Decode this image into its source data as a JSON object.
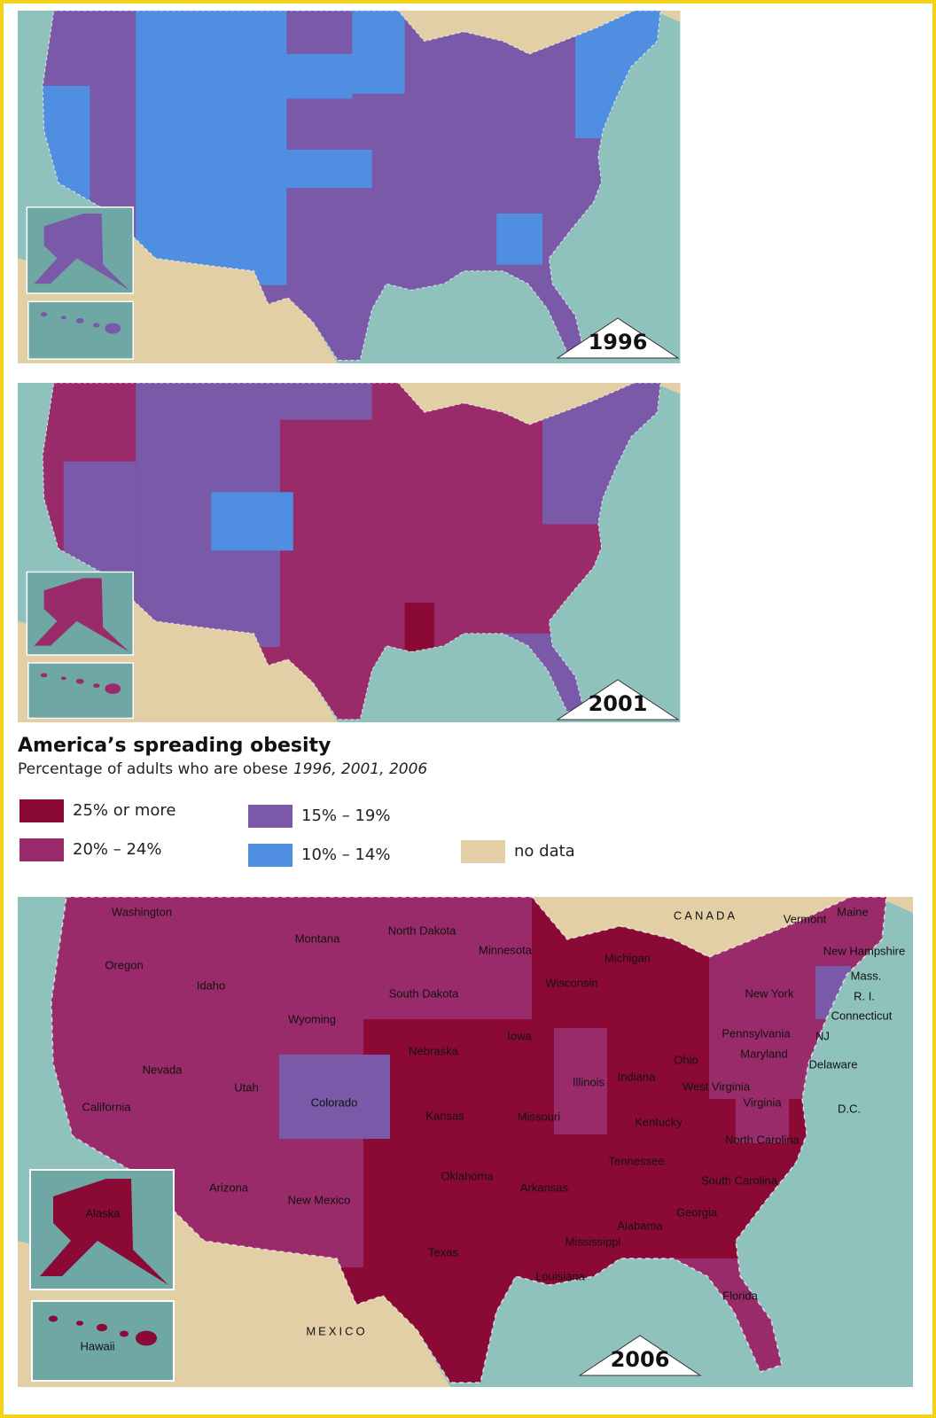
{
  "title": "America’s spreading obesity",
  "subtitle": {
    "text": "Percentage of adults who are obese",
    "years": "1996, 2001, 2006"
  },
  "legend": [
    {
      "label": "25% or more",
      "color": "#8a0a35"
    },
    {
      "label": "20% – 24%",
      "color": "#9a2b6a"
    },
    {
      "label": "15% – 19%",
      "color": "#7a5aa8"
    },
    {
      "label": "10% – 14%",
      "color": "#4f8ee0"
    },
    {
      "label": "no data",
      "color": "#e3cfa6"
    }
  ],
  "maps": [
    {
      "year": "1996"
    },
    {
      "year": "2001"
    },
    {
      "year": "2006",
      "country_labels": [
        "CANADA",
        "MEXICO"
      ],
      "state_labels": [
        "Washington",
        "Oregon",
        "Idaho",
        "Montana",
        "North Dakota",
        "Minnesota",
        "South Dakota",
        "Wyoming",
        "Nebraska",
        "Iowa",
        "Wisconsin",
        "Michigan",
        "Illinois",
        "Indiana",
        "Ohio",
        "West Virginia",
        "Nevada",
        "Utah",
        "Colorado",
        "California",
        "Kansas",
        "Missouri",
        "Kentucky",
        "Virginia",
        "Arizona",
        "New Mexico",
        "Oklahoma",
        "Arkansas",
        "Tennessee",
        "North Carolina",
        "South Carolina",
        "Georgia",
        "Alabama",
        "Mississippi",
        "Texas",
        "Louisiana",
        "Florida",
        "New York",
        "Pennsylvania",
        "Maryland",
        "Delaware",
        "NJ",
        "Connecticut",
        "R. I.",
        "Mass.",
        "New Hampshire",
        "Vermont",
        "Maine",
        "D.C.",
        "Alaska",
        "Hawaii"
      ]
    }
  ]
}
